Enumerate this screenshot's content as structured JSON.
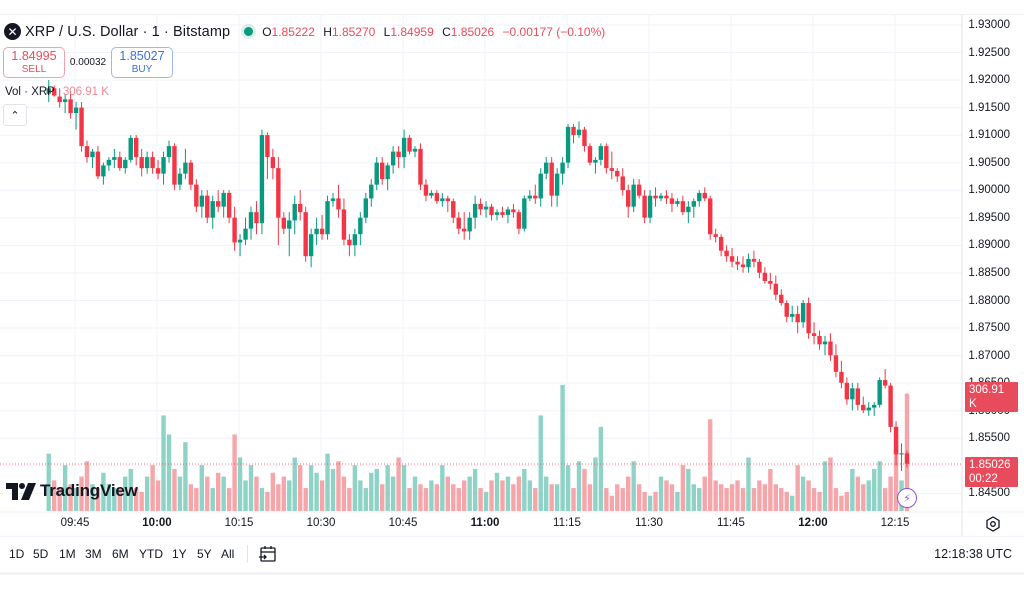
{
  "header": {
    "symbol_icon": "xrp-logo-icon",
    "title": "XRP / U.S. Dollar · 1 · Bitstamp",
    "market_status": "open",
    "ohlc": {
      "o_label": "O",
      "o": "1.85222",
      "h_label": "H",
      "h": "1.85270",
      "l_label": "L",
      "l": "1.84959",
      "c_label": "C",
      "c": "1.85026",
      "change": "−0.00177 (−0.10%)"
    }
  },
  "trade": {
    "sell_price": "1.84995",
    "sell_label": "SELL",
    "spread": "0.00032",
    "buy_price": "1.85027",
    "buy_label": "BUY"
  },
  "volume_legend": {
    "label": "Vol · XRP",
    "value": "306.91 K"
  },
  "price_axis": {
    "ticks": [
      "1.93000",
      "1.92500",
      "1.92000",
      "1.91500",
      "1.91000",
      "1.90500",
      "1.90000",
      "1.89500",
      "1.89000",
      "1.88500",
      "1.88000",
      "1.87500",
      "1.87000",
      "1.86500",
      "1.86000",
      "1.85500",
      "1.85000",
      "1.84500"
    ],
    "volume_badge": "306.91 K",
    "price_badge": "1.85026",
    "countdown": "00:22"
  },
  "time_axis": {
    "labels": [
      {
        "text": "09:45",
        "bold": false
      },
      {
        "text": "10:00",
        "bold": true
      },
      {
        "text": "10:15",
        "bold": false
      },
      {
        "text": "10:30",
        "bold": false
      },
      {
        "text": "10:45",
        "bold": false
      },
      {
        "text": "11:00",
        "bold": true
      },
      {
        "text": "11:15",
        "bold": false
      },
      {
        "text": "11:30",
        "bold": false
      },
      {
        "text": "11:45",
        "bold": false
      },
      {
        "text": "12:00",
        "bold": true
      },
      {
        "text": "12:15",
        "bold": false
      }
    ]
  },
  "range_bar": {
    "ranges": [
      "1D",
      "5D",
      "1M",
      "3M",
      "6M",
      "YTD",
      "1Y",
      "5Y",
      "All"
    ],
    "date_range_icon": "calendar-goto-icon",
    "clock": "12:18:38 UTC"
  },
  "branding": {
    "logo_text": "TradingView"
  },
  "colors": {
    "up": "#089981",
    "down": "#f23645",
    "up_volume": "#8fd3c6",
    "down_volume": "#f5a6ab",
    "grid": "#f0f3fa",
    "badge": "#e84c5c"
  },
  "chart_data": {
    "type": "candlestick",
    "title": "XRP / U.S. Dollar · 1 · Bitstamp",
    "interval": "1 minute",
    "xlabel": "",
    "ylabel": "",
    "ylim": [
      1.845,
      1.93
    ],
    "grid": true,
    "x_tick_labels": [
      "09:45",
      "10:00",
      "10:15",
      "10:30",
      "10:45",
      "11:00",
      "11:15",
      "11:30",
      "11:45",
      "12:00",
      "12:15"
    ],
    "y_tick_labels": [
      "1.84500",
      "1.85000",
      "1.85500",
      "1.86000",
      "1.86500",
      "1.87000",
      "1.87500",
      "1.88000",
      "1.88500",
      "1.89000",
      "1.89500",
      "1.90000",
      "1.90500",
      "1.91000",
      "1.91500",
      "1.92000",
      "1.92500",
      "1.93000"
    ],
    "last_close": 1.85026,
    "series_note": "Approximate OHLC read from pixels; each candle [open, high, low, close, volume_k]",
    "candles": [
      [
        1.9175,
        1.92,
        1.916,
        1.9185,
        150
      ],
      [
        1.9185,
        1.919,
        1.917,
        1.9172,
        80
      ],
      [
        1.917,
        1.9185,
        1.915,
        1.916,
        60
      ],
      [
        1.916,
        1.9175,
        1.914,
        1.9165,
        120
      ],
      [
        1.9165,
        1.918,
        1.913,
        1.914,
        70
      ],
      [
        1.914,
        1.916,
        1.911,
        1.915,
        60
      ],
      [
        1.915,
        1.916,
        1.907,
        1.908,
        90
      ],
      [
        1.908,
        1.909,
        1.905,
        1.906,
        130
      ],
      [
        1.906,
        1.9075,
        1.904,
        1.907,
        70
      ],
      [
        1.907,
        1.908,
        1.902,
        1.9025,
        60
      ],
      [
        1.9025,
        1.905,
        1.901,
        1.9045,
        100
      ],
      [
        1.9045,
        1.906,
        1.9035,
        1.9055,
        70
      ],
      [
        1.9055,
        1.9075,
        1.904,
        1.906,
        60
      ],
      [
        1.906,
        1.907,
        1.9035,
        1.904,
        60
      ],
      [
        1.904,
        1.906,
        1.903,
        1.9055,
        90
      ],
      [
        1.9055,
        1.91,
        1.905,
        1.9095,
        110
      ],
      [
        1.9095,
        1.91,
        1.9045,
        1.906,
        60
      ],
      [
        1.906,
        1.9075,
        1.9025,
        1.904,
        50
      ],
      [
        1.904,
        1.907,
        1.903,
        1.906,
        90
      ],
      [
        1.906,
        1.907,
        1.903,
        1.904,
        120
      ],
      [
        1.904,
        1.9055,
        1.902,
        1.903,
        80
      ],
      [
        1.903,
        1.907,
        1.901,
        1.906,
        250
      ],
      [
        1.906,
        1.909,
        1.905,
        1.908,
        200
      ],
      [
        1.908,
        1.9085,
        1.9,
        1.901,
        110
      ],
      [
        1.901,
        1.904,
        1.9,
        1.903,
        90
      ],
      [
        1.903,
        1.9075,
        1.902,
        1.905,
        180
      ],
      [
        1.905,
        1.9055,
        1.9,
        1.901,
        70
      ],
      [
        1.901,
        1.902,
        1.896,
        1.897,
        60
      ],
      [
        1.897,
        1.9,
        1.895,
        1.899,
        120
      ],
      [
        1.899,
        1.9,
        1.894,
        1.895,
        90
      ],
      [
        1.895,
        1.899,
        1.893,
        1.898,
        60
      ],
      [
        1.898,
        1.9,
        1.896,
        1.897,
        100
      ],
      [
        1.897,
        1.9,
        1.895,
        1.8995,
        90
      ],
      [
        1.8995,
        1.9,
        1.894,
        1.895,
        60
      ],
      [
        1.895,
        1.897,
        1.889,
        1.8905,
        200
      ],
      [
        1.8905,
        1.892,
        1.888,
        1.891,
        140
      ],
      [
        1.891,
        1.895,
        1.89,
        1.893,
        80
      ],
      [
        1.893,
        1.897,
        1.891,
        1.896,
        120
      ],
      [
        1.896,
        1.898,
        1.892,
        1.894,
        90
      ],
      [
        1.894,
        1.911,
        1.892,
        1.91,
        60
      ],
      [
        1.91,
        1.9105,
        1.902,
        1.906,
        50
      ],
      [
        1.906,
        1.9075,
        1.902,
        1.904,
        100
      ],
      [
        1.904,
        1.906,
        1.89,
        1.895,
        70
      ],
      [
        1.895,
        1.896,
        1.892,
        1.893,
        90
      ],
      [
        1.893,
        1.896,
        1.888,
        1.8945,
        80
      ],
      [
        1.8945,
        1.899,
        1.892,
        1.8975,
        140
      ],
      [
        1.8975,
        1.9,
        1.8945,
        1.896,
        120
      ],
      [
        1.896,
        1.897,
        1.887,
        1.888,
        60
      ],
      [
        1.888,
        1.893,
        1.886,
        1.892,
        120
      ],
      [
        1.892,
        1.895,
        1.89,
        1.893,
        100
      ],
      [
        1.893,
        1.8955,
        1.891,
        1.892,
        80
      ],
      [
        1.892,
        1.899,
        1.891,
        1.898,
        150
      ],
      [
        1.898,
        1.8995,
        1.897,
        1.8985,
        110
      ],
      [
        1.8985,
        1.901,
        1.895,
        1.8965,
        130
      ],
      [
        1.8965,
        1.8985,
        1.89,
        1.891,
        90
      ],
      [
        1.891,
        1.892,
        1.888,
        1.89,
        60
      ],
      [
        1.89,
        1.893,
        1.888,
        1.892,
        120
      ],
      [
        1.892,
        1.896,
        1.89,
        1.895,
        80
      ],
      [
        1.895,
        1.8995,
        1.894,
        1.8985,
        60
      ],
      [
        1.8985,
        1.902,
        1.897,
        1.901,
        100
      ],
      [
        1.901,
        1.906,
        1.9,
        1.905,
        110
      ],
      [
        1.905,
        1.906,
        1.901,
        1.902,
        70
      ],
      [
        1.902,
        1.905,
        1.9,
        1.9045,
        120
      ],
      [
        1.9045,
        1.908,
        1.903,
        1.907,
        90
      ],
      [
        1.907,
        1.908,
        1.904,
        1.906,
        140
      ],
      [
        1.906,
        1.911,
        1.904,
        1.9095,
        120
      ],
      [
        1.9095,
        1.91,
        1.9065,
        1.907,
        60
      ],
      [
        1.907,
        1.908,
        1.906,
        1.9075,
        90
      ],
      [
        1.9075,
        1.9085,
        1.9,
        1.901,
        70
      ],
      [
        1.901,
        1.902,
        1.898,
        1.899,
        60
      ],
      [
        1.899,
        1.9,
        1.8985,
        1.8995,
        80
      ],
      [
        1.8995,
        1.9,
        1.8975,
        1.898,
        70
      ],
      [
        1.898,
        1.8995,
        1.897,
        1.8985,
        120
      ],
      [
        1.8985,
        1.899,
        1.896,
        1.898,
        90
      ],
      [
        1.898,
        1.8985,
        1.894,
        1.895,
        70
      ],
      [
        1.895,
        1.896,
        1.892,
        1.893,
        60
      ],
      [
        1.893,
        1.896,
        1.891,
        1.8925,
        80
      ],
      [
        1.8925,
        1.896,
        1.891,
        1.895,
        90
      ],
      [
        1.895,
        1.899,
        1.893,
        1.8975,
        110
      ],
      [
        1.8975,
        1.8985,
        1.8955,
        1.8965,
        60
      ],
      [
        1.8965,
        1.898,
        1.895,
        1.897,
        50
      ],
      [
        1.897,
        1.8975,
        1.8945,
        1.8955,
        80
      ],
      [
        1.8955,
        1.8965,
        1.8945,
        1.896,
        100
      ],
      [
        1.896,
        1.897,
        1.895,
        1.8955,
        80
      ],
      [
        1.8955,
        1.897,
        1.894,
        1.8965,
        90
      ],
      [
        1.8965,
        1.8975,
        1.895,
        1.896,
        70
      ],
      [
        1.896,
        1.8965,
        1.892,
        1.893,
        90
      ],
      [
        1.893,
        1.899,
        1.8925,
        1.8985,
        110
      ],
      [
        1.8985,
        1.9,
        1.898,
        1.899,
        80
      ],
      [
        1.899,
        1.901,
        1.8975,
        1.8985,
        60
      ],
      [
        1.8985,
        1.904,
        1.897,
        1.903,
        250
      ],
      [
        1.903,
        1.906,
        1.902,
        1.905,
        90
      ],
      [
        1.905,
        1.906,
        1.897,
        1.899,
        70
      ],
      [
        1.899,
        1.904,
        1.897,
        1.903,
        70
      ],
      [
        1.903,
        1.906,
        1.901,
        1.905,
        330
      ],
      [
        1.905,
        1.912,
        1.904,
        1.9115,
        120
      ],
      [
        1.9115,
        1.912,
        1.9085,
        1.91,
        60
      ],
      [
        1.91,
        1.9125,
        1.9095,
        1.911,
        130
      ],
      [
        1.911,
        1.9115,
        1.907,
        1.908,
        110
      ],
      [
        1.908,
        1.9085,
        1.9045,
        1.905,
        70
      ],
      [
        1.905,
        1.906,
        1.903,
        1.9055,
        140
      ],
      [
        1.9055,
        1.9085,
        1.9045,
        1.908,
        220
      ],
      [
        1.908,
        1.9085,
        1.903,
        1.904,
        60
      ],
      [
        1.904,
        1.907,
        1.902,
        1.9035,
        40
      ],
      [
        1.9035,
        1.904,
        1.9015,
        1.9025,
        70
      ],
      [
        1.9025,
        1.904,
        1.899,
        1.9,
        60
      ],
      [
        1.9,
        1.901,
        1.895,
        1.897,
        90
      ],
      [
        1.897,
        1.902,
        1.896,
        1.901,
        130
      ],
      [
        1.901,
        1.902,
        1.8985,
        1.899,
        70
      ],
      [
        1.899,
        1.9,
        1.894,
        1.895,
        50
      ],
      [
        1.895,
        1.9,
        1.894,
        1.899,
        40
      ],
      [
        1.899,
        1.9005,
        1.897,
        1.8985,
        50
      ],
      [
        1.8985,
        1.8995,
        1.898,
        1.899,
        90
      ],
      [
        1.899,
        1.9,
        1.8975,
        1.8985,
        80
      ],
      [
        1.8985,
        1.8995,
        1.896,
        1.8975,
        70
      ],
      [
        1.8975,
        1.8985,
        1.897,
        1.898,
        50
      ],
      [
        1.898,
        1.899,
        1.8955,
        1.896,
        120
      ],
      [
        1.896,
        1.898,
        1.894,
        1.897,
        110
      ],
      [
        1.897,
        1.8985,
        1.895,
        1.898,
        70
      ],
      [
        1.898,
        1.9,
        1.897,
        1.8995,
        60
      ],
      [
        1.8995,
        1.9005,
        1.898,
        1.8985,
        90
      ],
      [
        1.8985,
        1.899,
        1.891,
        1.892,
        240
      ],
      [
        1.892,
        1.893,
        1.8905,
        1.8915,
        80
      ],
      [
        1.8915,
        1.892,
        1.888,
        1.889,
        70
      ],
      [
        1.889,
        1.89,
        1.887,
        1.888,
        60
      ],
      [
        1.888,
        1.8895,
        1.886,
        1.887,
        70
      ],
      [
        1.887,
        1.888,
        1.8855,
        1.8865,
        80
      ],
      [
        1.8865,
        1.888,
        1.885,
        1.886,
        60
      ],
      [
        1.886,
        1.8885,
        1.885,
        1.8875,
        140
      ],
      [
        1.8875,
        1.889,
        1.886,
        1.887,
        60
      ],
      [
        1.887,
        1.8875,
        1.884,
        1.885,
        80
      ],
      [
        1.885,
        1.886,
        1.883,
        1.8835,
        70
      ],
      [
        1.8835,
        1.885,
        1.882,
        1.883,
        110
      ],
      [
        1.883,
        1.8845,
        1.88,
        1.881,
        70
      ],
      [
        1.881,
        1.882,
        1.879,
        1.8795,
        60
      ],
      [
        1.8795,
        1.88,
        1.876,
        1.877,
        50
      ],
      [
        1.877,
        1.879,
        1.876,
        1.8775,
        40
      ],
      [
        1.8775,
        1.879,
        1.874,
        1.876,
        120
      ],
      [
        1.876,
        1.88,
        1.875,
        1.8795,
        90
      ],
      [
        1.8795,
        1.8805,
        1.873,
        1.874,
        80
      ],
      [
        1.874,
        1.876,
        1.872,
        1.8735,
        60
      ],
      [
        1.8735,
        1.8745,
        1.871,
        1.872,
        50
      ],
      [
        1.872,
        1.8735,
        1.87,
        1.8725,
        130
      ],
      [
        1.8725,
        1.874,
        1.869,
        1.87,
        140
      ],
      [
        1.87,
        1.872,
        1.866,
        1.867,
        60
      ],
      [
        1.867,
        1.869,
        1.864,
        1.865,
        40
      ],
      [
        1.865,
        1.866,
        1.861,
        1.862,
        50
      ],
      [
        1.862,
        1.865,
        1.86,
        1.864,
        110
      ],
      [
        1.864,
        1.865,
        1.86,
        1.861,
        90
      ],
      [
        1.861,
        1.8625,
        1.8595,
        1.86,
        70
      ],
      [
        1.86,
        1.8615,
        1.859,
        1.8605,
        80
      ],
      [
        1.8605,
        1.8615,
        1.859,
        1.861,
        110
      ],
      [
        1.861,
        1.866,
        1.8605,
        1.8655,
        130
      ],
      [
        1.8655,
        1.8675,
        1.864,
        1.8645,
        60
      ],
      [
        1.8645,
        1.865,
        1.856,
        1.857,
        90
      ],
      [
        1.857,
        1.858,
        1.85,
        1.852,
        200
      ],
      [
        1.852,
        1.854,
        1.849,
        1.8522,
        80
      ],
      [
        1.8522,
        1.8527,
        1.8496,
        1.8503,
        307
      ]
    ]
  }
}
